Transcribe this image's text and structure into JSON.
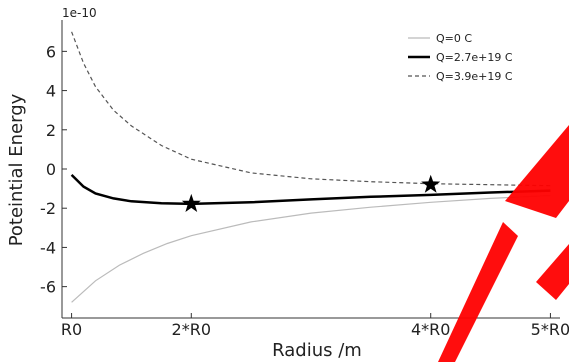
{
  "chart_data": {
    "type": "line",
    "xlabel": "Radius /m",
    "ylabel": "Poteintial Energy",
    "y_offset_text": "1e-10",
    "x_ticks": [
      {
        "value": 1,
        "label": "R0"
      },
      {
        "value": 2,
        "label": "2*R0"
      },
      {
        "value": 4,
        "label": "4*R0"
      },
      {
        "value": 5,
        "label": "5*R0"
      }
    ],
    "y_ticks": [
      {
        "value": 6,
        "label": "6"
      },
      {
        "value": 4,
        "label": "4"
      },
      {
        "value": 2,
        "label": "2"
      },
      {
        "value": 0,
        "label": "0"
      },
      {
        "value": -2,
        "label": "-2"
      },
      {
        "value": -4,
        "label": "-4"
      },
      {
        "value": -6,
        "label": "-6"
      }
    ],
    "xlim": [
      0.92,
      5.08
    ],
    "ylim": [
      -7.6,
      7.6
    ],
    "grid": false,
    "legend_position": "top-right",
    "series": [
      {
        "name": "Q=0 C",
        "color": "#bbbbbb",
        "style": "solid",
        "x": [
          1.0,
          1.2,
          1.4,
          1.6,
          1.8,
          2.0,
          2.5,
          3.0,
          3.5,
          4.0,
          4.5,
          5.0
        ],
        "y": [
          -6.8,
          -5.7,
          -4.9,
          -4.3,
          -3.8,
          -3.4,
          -2.7,
          -2.25,
          -1.95,
          -1.7,
          -1.5,
          -1.35
        ]
      },
      {
        "name": "Q=2.7e+19 C",
        "color": "#000000",
        "style": "solid",
        "x": [
          1.0,
          1.1,
          1.2,
          1.35,
          1.5,
          1.75,
          2.0,
          2.5,
          3.0,
          3.5,
          4.0,
          4.5,
          5.0
        ],
        "y": [
          -0.3,
          -0.9,
          -1.25,
          -1.5,
          -1.65,
          -1.75,
          -1.78,
          -1.7,
          -1.55,
          -1.42,
          -1.32,
          -1.2,
          -1.1
        ]
      },
      {
        "name": "Q=3.9e+19 C",
        "color": "#555555",
        "style": "dashed",
        "x": [
          1.0,
          1.1,
          1.2,
          1.35,
          1.5,
          1.75,
          2.0,
          2.5,
          3.0,
          3.5,
          4.0,
          4.5,
          5.0
        ],
        "y": [
          7.0,
          5.4,
          4.2,
          3.0,
          2.2,
          1.2,
          0.5,
          -0.2,
          -0.5,
          -0.65,
          -0.75,
          -0.8,
          -0.85
        ]
      }
    ],
    "markers": [
      {
        "x": 2.0,
        "y": -1.78,
        "shape": "star"
      },
      {
        "x": 4.0,
        "y": -0.8,
        "shape": "star"
      }
    ],
    "overlay_color": "#ff0000"
  }
}
